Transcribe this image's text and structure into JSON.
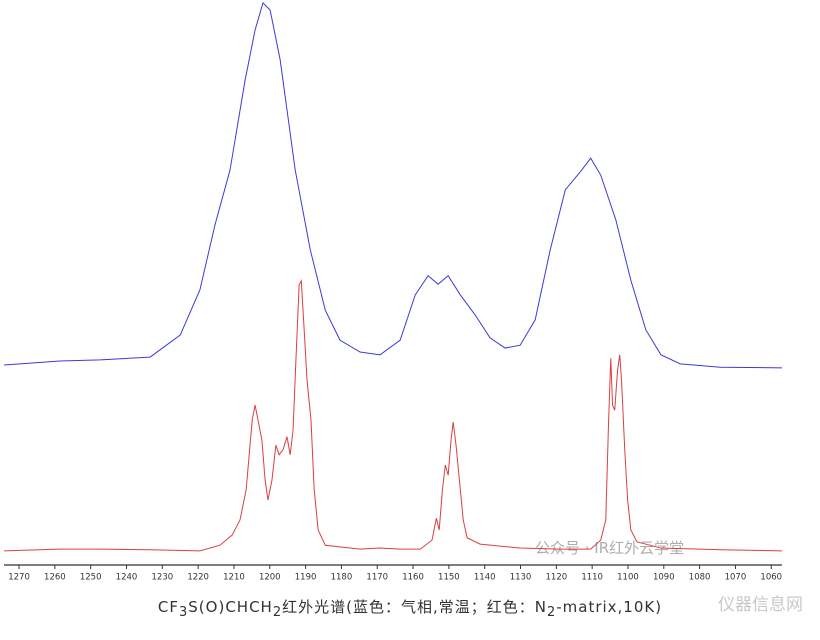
{
  "chart_data": {
    "type": "line",
    "caption": [
      "CF",
      "3",
      "S(O)CHCH",
      "2",
      "红外光谱(蓝色：气相,常温；红色：N",
      "2",
      "-matrix,10K)"
    ],
    "watermarks": [
      "公众号 · IR红外云学堂",
      "仪器信息网"
    ],
    "xlim": [
      1274.2,
      1057.0
    ],
    "ylim": [
      0,
      100
    ],
    "xticks": [
      1270,
      1260,
      1250,
      1240,
      1230,
      1220,
      1210,
      1200,
      1190,
      1180,
      1170,
      1160,
      1150,
      1140,
      1130,
      1120,
      1110,
      1100,
      1090,
      1080,
      1070,
      1060
    ],
    "series": [
      {
        "color": "#3b3bd6",
        "x": [
          1274.2,
          1258.6,
          1247.4,
          1233.4,
          1225.0,
          1219.5,
          1215.3,
          1211.1,
          1206.9,
          1204.1,
          1201.9,
          1199.9,
          1197.1,
          1192.9,
          1188.7,
          1184.5,
          1180.4,
          1174.8,
          1169.2,
          1163.6,
          1159.4,
          1155.8,
          1153.0,
          1150.2,
          1146.8,
          1142.6,
          1138.5,
          1134.3,
          1130.1,
          1125.9,
          1121.7,
          1117.5,
          1113.3,
          1110.4,
          1107.6,
          1103.4,
          1099.2,
          1095.0,
          1090.8,
          1085.4,
          1074.2,
          1057.0
        ],
        "values": [
          35.4,
          36.1,
          36.3,
          36.8,
          40.7,
          48.7,
          60.2,
          69.9,
          85.8,
          94.7,
          99.5,
          98.2,
          89.4,
          69.9,
          55.8,
          45.1,
          39.8,
          37.7,
          37.2,
          39.8,
          47.8,
          51.2,
          49.7,
          51.2,
          47.8,
          44.2,
          40.2,
          38.4,
          38.9,
          43.4,
          55.8,
          66.4,
          69.6,
          72.0,
          69.0,
          61.1,
          50.4,
          41.6,
          37.2,
          35.6,
          35.0,
          34.9
        ]
      },
      {
        "color": "#d94040",
        "x": [
          1274.2,
          1258.6,
          1247.4,
          1233.4,
          1219.5,
          1213.9,
          1210.5,
          1208.3,
          1206.6,
          1204.9,
          1204.1,
          1203.3,
          1202.2,
          1201.3,
          1200.5,
          1199.4,
          1198.3,
          1197.4,
          1196.3,
          1195.2,
          1194.3,
          1193.5,
          1192.7,
          1191.8,
          1191.2,
          1190.4,
          1189.6,
          1188.5,
          1187.6,
          1186.5,
          1184.5,
          1174.8,
          1169.2,
          1163.6,
          1158.0,
          1154.7,
          1153.5,
          1152.7,
          1151.8,
          1151.0,
          1150.2,
          1149.4,
          1148.8,
          1148.0,
          1146.8,
          1146.0,
          1144.9,
          1141.3,
          1130.1,
          1118.9,
          1110.4,
          1107.6,
          1106.2,
          1105.4,
          1104.8,
          1104.3,
          1103.7,
          1102.9,
          1102.3,
          1101.8,
          1100.9,
          1100.1,
          1099.2,
          1097.5,
          1090.8,
          1074.2,
          1057.0
        ],
        "values": [
          2.5,
          2.8,
          2.8,
          2.7,
          2.5,
          3.5,
          5.3,
          8.0,
          13.3,
          25.7,
          28.3,
          25.7,
          22.1,
          15.0,
          11.5,
          15.0,
          21.2,
          19.5,
          20.4,
          22.7,
          19.5,
          23.9,
          36.3,
          49.6,
          50.3,
          41.6,
          32.7,
          25.7,
          13.3,
          6.2,
          3.5,
          2.8,
          3.0,
          2.8,
          2.8,
          4.4,
          8.3,
          6.2,
          13.3,
          17.7,
          15.9,
          22.1,
          25.3,
          21.2,
          13.3,
          8.0,
          4.8,
          3.7,
          3.0,
          2.8,
          2.8,
          4.4,
          8.0,
          25.7,
          36.6,
          28.3,
          27.4,
          34.5,
          37.2,
          32.7,
          20.4,
          11.5,
          6.2,
          4.1,
          3.0,
          2.7,
          2.5
        ]
      }
    ]
  }
}
